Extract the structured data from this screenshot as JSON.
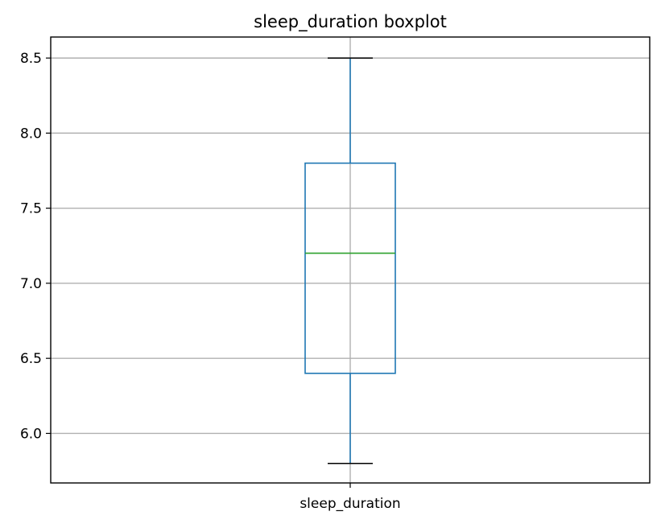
{
  "chart_data": {
    "type": "boxplot",
    "title": "sleep_duration boxplot",
    "categories": [
      "sleep_duration"
    ],
    "boxes": [
      {
        "category": "sleep_duration",
        "whisker_low": 5.8,
        "q1": 6.4,
        "median": 7.2,
        "q3": 7.8,
        "whisker_high": 8.5
      }
    ],
    "ylim": [
      5.67,
      8.64
    ],
    "yticks": [
      6.0,
      6.5,
      7.0,
      7.5,
      8.0,
      8.5
    ],
    "ytick_labels": [
      "6.0",
      "6.5",
      "7.0",
      "7.5",
      "8.0",
      "8.5"
    ],
    "grid": true,
    "colors": {
      "box": "#1f77b4",
      "median": "#2ca02c",
      "caps": "#000000",
      "grid": "#b0b0b0"
    }
  }
}
